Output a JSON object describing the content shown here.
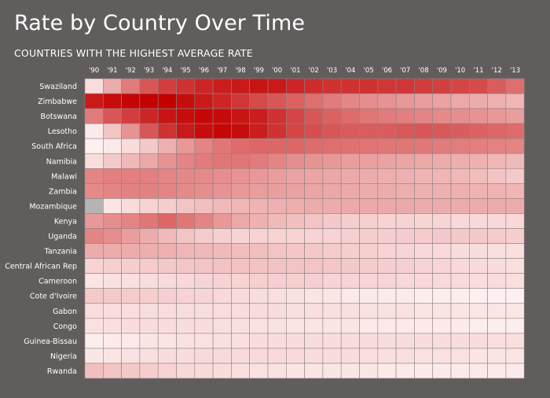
{
  "chart_data": {
    "type": "heatmap",
    "title": "Rate by Country Over Time",
    "subtitle": "COUNTRIES WITH THE HIGHEST AVERAGE RATE",
    "x": [
      "'90",
      "'91",
      "'92",
      "'93",
      "'94",
      "'95",
      "'96",
      "'97",
      "'98",
      "'99",
      "'00",
      "'01",
      "'02",
      "'03",
      "'04",
      "'05",
      "'06",
      "'07",
      "'08",
      "'09",
      "'10",
      "'11",
      "'12",
      "'13"
    ],
    "y": [
      "Swaziland",
      "Zimbabwe",
      "Botswana",
      "Lesotho",
      "South Africa",
      "Namibia",
      "Malawi",
      "Zambia",
      "Mozambique",
      "Kenya",
      "Uganda",
      "Tanzania",
      "Central African Rep",
      "Cameroon",
      "Cote d'Ivoire",
      "Gabon",
      "Congo",
      "Guinea-Bissau",
      "Nigeria",
      "Rwanda"
    ],
    "values": [
      [
        0.1,
        0.3,
        0.5,
        0.65,
        0.75,
        0.8,
        0.85,
        0.88,
        0.9,
        0.92,
        0.9,
        0.85,
        0.82,
        0.8,
        0.8,
        0.8,
        0.78,
        0.78,
        0.76,
        0.74,
        0.72,
        0.7,
        0.62,
        0.55
      ],
      [
        0.9,
        0.95,
        0.98,
        1.0,
        1.0,
        0.95,
        0.9,
        0.85,
        0.78,
        0.7,
        0.65,
        0.6,
        0.55,
        0.5,
        0.45,
        0.42,
        0.4,
        0.38,
        0.36,
        0.34,
        0.32,
        0.3,
        0.28,
        0.26
      ],
      [
        0.5,
        0.65,
        0.75,
        0.85,
        0.92,
        0.95,
        0.97,
        0.96,
        0.92,
        0.88,
        0.8,
        0.72,
        0.65,
        0.6,
        0.56,
        0.52,
        0.5,
        0.48,
        0.46,
        0.44,
        0.42,
        0.4,
        0.38,
        0.36
      ],
      [
        0.05,
        0.2,
        0.4,
        0.65,
        0.8,
        0.9,
        0.95,
        0.97,
        0.95,
        0.88,
        0.8,
        0.72,
        0.68,
        0.65,
        0.63,
        0.62,
        0.62,
        0.64,
        0.65,
        0.64,
        0.62,
        0.6,
        0.58,
        0.56
      ],
      [
        0.02,
        0.05,
        0.1,
        0.18,
        0.28,
        0.38,
        0.46,
        0.52,
        0.56,
        0.58,
        0.58,
        0.58,
        0.56,
        0.55,
        0.54,
        0.53,
        0.52,
        0.52,
        0.51,
        0.5,
        0.49,
        0.48,
        0.47,
        0.46
      ],
      [
        0.1,
        0.18,
        0.25,
        0.32,
        0.4,
        0.46,
        0.5,
        0.52,
        0.52,
        0.5,
        0.46,
        0.42,
        0.4,
        0.38,
        0.36,
        0.35,
        0.34,
        0.33,
        0.32,
        0.3,
        0.29,
        0.28,
        0.26,
        0.24
      ],
      [
        0.46,
        0.48,
        0.48,
        0.48,
        0.46,
        0.45,
        0.44,
        0.42,
        0.4,
        0.38,
        0.36,
        0.34,
        0.33,
        0.32,
        0.31,
        0.3,
        0.29,
        0.28,
        0.27,
        0.26,
        0.25,
        0.23,
        0.2,
        0.18
      ],
      [
        0.44,
        0.46,
        0.47,
        0.47,
        0.46,
        0.44,
        0.42,
        0.4,
        0.38,
        0.36,
        0.35,
        0.34,
        0.33,
        0.32,
        0.31,
        0.3,
        0.3,
        0.29,
        0.28,
        0.28,
        0.28,
        0.27,
        0.27,
        0.26
      ],
      [
        null,
        0.06,
        0.1,
        0.14,
        0.16,
        0.2,
        0.22,
        0.24,
        0.26,
        0.27,
        0.28,
        0.29,
        0.3,
        0.3,
        0.31,
        0.31,
        0.31,
        0.31,
        0.3,
        0.3,
        0.3,
        0.3,
        0.3,
        0.3
      ],
      [
        0.38,
        0.42,
        0.46,
        0.52,
        0.58,
        0.52,
        0.46,
        0.38,
        0.32,
        0.28,
        0.24,
        0.22,
        0.2,
        0.18,
        0.16,
        0.15,
        0.14,
        0.14,
        0.13,
        0.13,
        0.12,
        0.12,
        0.12,
        0.12
      ],
      [
        0.46,
        0.42,
        0.36,
        0.3,
        0.24,
        0.2,
        0.17,
        0.15,
        0.14,
        0.14,
        0.14,
        0.14,
        0.14,
        0.14,
        0.15,
        0.16,
        0.16,
        0.17,
        0.17,
        0.18,
        0.18,
        0.18,
        0.17,
        0.16
      ],
      [
        0.3,
        0.3,
        0.3,
        0.29,
        0.28,
        0.26,
        0.25,
        0.24,
        0.23,
        0.22,
        0.2,
        0.19,
        0.18,
        0.17,
        0.16,
        0.15,
        0.14,
        0.13,
        0.12,
        0.11,
        0.1,
        0.1,
        0.09,
        0.09
      ],
      [
        0.14,
        0.15,
        0.16,
        0.17,
        0.18,
        0.19,
        0.2,
        0.21,
        0.21,
        0.21,
        0.21,
        0.2,
        0.2,
        0.19,
        0.18,
        0.17,
        0.16,
        0.15,
        0.14,
        0.13,
        0.12,
        0.11,
        0.1,
        0.09
      ],
      [
        0.07,
        0.08,
        0.09,
        0.1,
        0.11,
        0.12,
        0.13,
        0.14,
        0.14,
        0.15,
        0.15,
        0.15,
        0.15,
        0.14,
        0.14,
        0.13,
        0.13,
        0.12,
        0.12,
        0.11,
        0.11,
        0.1,
        0.1,
        0.09
      ],
      [
        0.18,
        0.18,
        0.17,
        0.16,
        0.15,
        0.14,
        0.13,
        0.12,
        0.11,
        0.1,
        0.09,
        0.08,
        0.07,
        0.06,
        0.05,
        0.05,
        0.04,
        0.04,
        0.03,
        0.03,
        0.03,
        0.02,
        0.02,
        0.02
      ],
      [
        0.1,
        0.1,
        0.1,
        0.1,
        0.1,
        0.1,
        0.1,
        0.1,
        0.1,
        0.1,
        0.1,
        0.09,
        0.09,
        0.09,
        0.09,
        0.08,
        0.08,
        0.08,
        0.07,
        0.07,
        0.07,
        0.06,
        0.06,
        0.06
      ],
      [
        0.08,
        0.09,
        0.1,
        0.1,
        0.1,
        0.1,
        0.1,
        0.09,
        0.09,
        0.08,
        0.08,
        0.07,
        0.07,
        0.06,
        0.06,
        0.05,
        0.05,
        0.05,
        0.04,
        0.04,
        0.04,
        0.03,
        0.03,
        0.03
      ],
      [
        0.03,
        0.04,
        0.05,
        0.06,
        0.07,
        0.08,
        0.08,
        0.09,
        0.09,
        0.1,
        0.1,
        0.1,
        0.1,
        0.1,
        0.1,
        0.1,
        0.1,
        0.1,
        0.1,
        0.1,
        0.1,
        0.1,
        0.09,
        0.09
      ],
      [
        0.06,
        0.07,
        0.08,
        0.09,
        0.1,
        0.1,
        0.11,
        0.11,
        0.11,
        0.11,
        0.11,
        0.11,
        0.1,
        0.1,
        0.1,
        0.09,
        0.09,
        0.09,
        0.08,
        0.08,
        0.08,
        0.07,
        0.07,
        0.07
      ],
      [
        0.22,
        0.2,
        0.18,
        0.16,
        0.14,
        0.12,
        0.11,
        0.1,
        0.09,
        0.08,
        0.08,
        0.07,
        0.07,
        0.06,
        0.06,
        0.06,
        0.05,
        0.05,
        0.05,
        0.05,
        0.05,
        0.05,
        0.05,
        0.05
      ]
    ],
    "value_range": [
      0,
      1
    ],
    "colors": {
      "low": "#fff5f5",
      "high": "#c40000",
      "missing": "#b4b4b4",
      "cell_border": "#8c8484"
    },
    "grid": true,
    "legend": "none"
  }
}
